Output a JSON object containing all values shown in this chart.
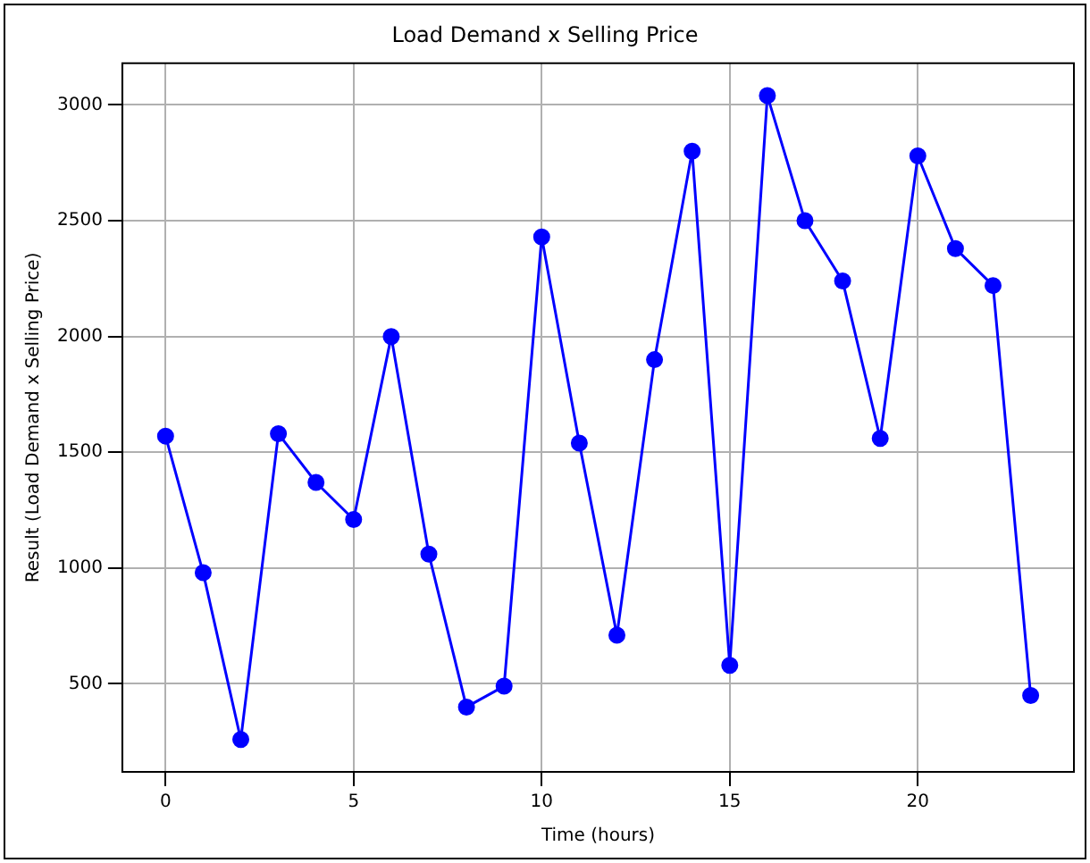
{
  "chart_data": {
    "type": "line",
    "title": "Load Demand x Selling Price",
    "xlabel": "Time (hours)",
    "ylabel": "Result (Load Demand x Selling Price)",
    "x": [
      0,
      1,
      2,
      3,
      4,
      5,
      6,
      7,
      8,
      9,
      10,
      11,
      12,
      13,
      14,
      15,
      16,
      17,
      18,
      19,
      20,
      21,
      22,
      23
    ],
    "series": [
      {
        "color": "#0000ff",
        "values": [
          1570,
          980,
          260,
          1580,
          1370,
          1210,
          2000,
          1060,
          400,
          490,
          2430,
          1540,
          710,
          1900,
          2800,
          580,
          3040,
          2500,
          2240,
          1560,
          2780,
          2380,
          2220,
          450
        ]
      }
    ],
    "xlim": [
      -1.15,
      24.15
    ],
    "xticks": [
      0,
      5,
      10,
      15,
      20
    ],
    "ylim": [
      120,
      3180
    ],
    "yticks": [
      500,
      1000,
      1500,
      2000,
      2500,
      3000
    ],
    "grid": true,
    "marker": "circle",
    "line_style": "solid"
  }
}
